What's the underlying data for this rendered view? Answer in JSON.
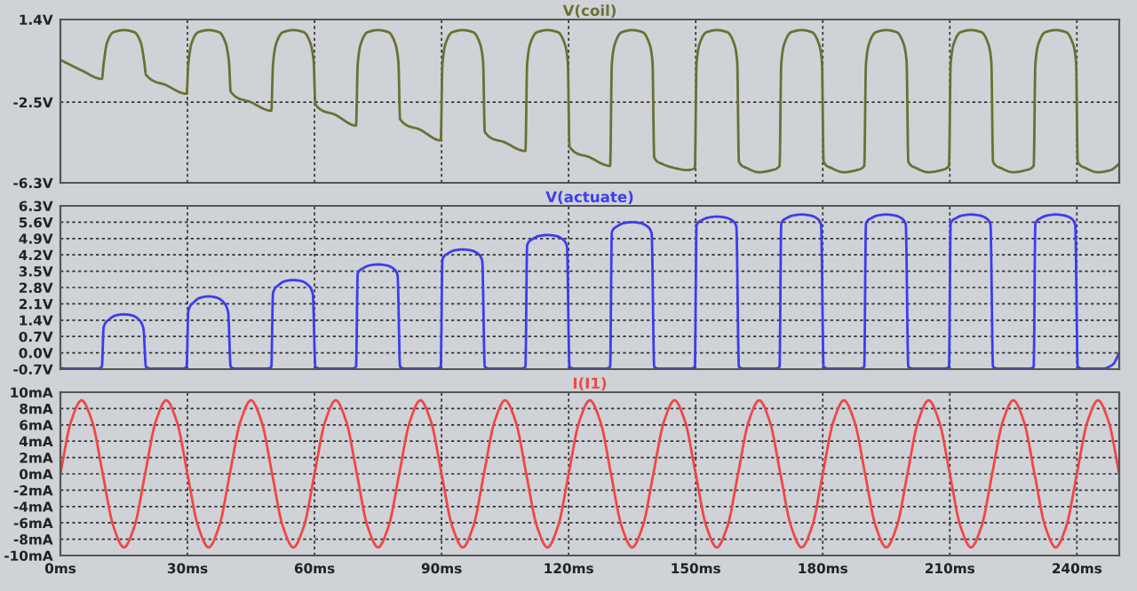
{
  "chart_data": [
    {
      "type": "line",
      "tick_labels": "y",
      "grid": true,
      "xlim": [
        0,
        250
      ],
      "ylim": [
        -6.3,
        1.4
      ],
      "xticks": [
        {
          "value": 0,
          "label": null
        },
        {
          "value": 30,
          "label": null
        },
        {
          "value": 60,
          "label": null
        },
        {
          "value": 90,
          "label": null
        },
        {
          "value": 120,
          "label": null
        },
        {
          "value": 150,
          "label": null
        },
        {
          "value": 180,
          "label": null
        },
        {
          "value": 210,
          "label": null
        },
        {
          "value": 240,
          "label": null
        }
      ],
      "yticks": [
        {
          "value": 1.4,
          "label": "1.4V"
        },
        {
          "value": -2.5,
          "label": "-2.5V"
        },
        {
          "value": -6.3,
          "label": "-6.3V"
        }
      ],
      "series": [
        {
          "name": "V(coil)",
          "color": "#6b7033",
          "x": [
            0,
            5,
            9.8,
            10.2,
            11,
            12.5,
            15,
            17.5,
            19,
            19.8,
            20.2,
            25,
            29.8,
            30.2,
            31,
            32.5,
            35,
            37.5,
            39,
            39.8,
            40.2,
            45,
            49.8,
            50.2,
            51,
            52.5,
            55,
            57.5,
            59,
            59.8,
            60.2,
            65,
            69.8,
            70.2,
            71,
            72.5,
            75,
            77.5,
            79,
            79.8,
            80.2,
            85,
            89.8,
            90.2,
            91,
            92.5,
            95,
            97.5,
            99,
            99.8,
            100.2,
            105,
            109.8,
            110.2,
            111,
            112.5,
            115,
            117.5,
            119,
            119.8,
            120.2,
            125,
            129.8,
            130.2,
            131,
            132.5,
            135,
            137.5,
            139,
            139.8,
            140.2,
            142,
            145,
            148,
            149.8,
            150.2,
            151,
            152.5,
            155,
            157.5,
            159,
            159.8,
            160.2,
            162,
            165,
            168,
            169.8,
            170.2,
            171,
            172.5,
            175,
            177.5,
            179,
            179.8,
            180.2,
            182,
            185,
            188,
            189.8,
            190.2,
            191,
            192.5,
            195,
            197.5,
            199,
            199.8,
            200.2,
            202,
            205,
            208,
            209.8,
            210.2,
            211,
            212.5,
            215,
            217.5,
            219,
            219.8,
            220.2,
            222,
            225,
            228,
            229.8,
            230.2,
            231,
            232.5,
            235,
            237.5,
            239,
            239.8,
            240.2,
            242,
            245,
            248,
            250
          ],
          "values": [
            -0.5,
            -1.0,
            -1.4,
            -0.7,
            0.3,
            0.8,
            0.9,
            0.8,
            0.3,
            -0.6,
            -1.2,
            -1.7,
            -2.1,
            -0.7,
            0.3,
            0.8,
            0.9,
            0.8,
            0.3,
            -0.6,
            -2.0,
            -2.5,
            -2.9,
            -0.7,
            0.3,
            0.8,
            0.9,
            0.8,
            0.3,
            -0.6,
            -2.6,
            -3.1,
            -3.6,
            -0.7,
            0.3,
            0.8,
            0.9,
            0.8,
            0.3,
            -0.6,
            -3.3,
            -3.8,
            -4.3,
            -0.7,
            0.3,
            0.8,
            0.9,
            0.8,
            0.3,
            -0.6,
            -3.9,
            -4.4,
            -4.8,
            -0.7,
            0.3,
            0.8,
            0.9,
            0.8,
            0.3,
            -0.6,
            -4.6,
            -5.1,
            -5.5,
            -0.7,
            0.3,
            0.8,
            0.9,
            0.8,
            0.3,
            -0.6,
            -5.1,
            -5.4,
            -5.6,
            -5.7,
            -5.6,
            -0.7,
            0.3,
            0.8,
            0.9,
            0.8,
            0.3,
            -0.6,
            -5.3,
            -5.6,
            -5.8,
            -5.7,
            -5.5,
            -0.7,
            0.3,
            0.8,
            0.9,
            0.8,
            0.3,
            -0.6,
            -5.3,
            -5.6,
            -5.8,
            -5.7,
            -5.5,
            -0.7,
            0.3,
            0.8,
            0.9,
            0.8,
            0.3,
            -0.6,
            -5.3,
            -5.6,
            -5.8,
            -5.7,
            -5.5,
            -0.7,
            0.3,
            0.8,
            0.9,
            0.8,
            0.3,
            -0.6,
            -5.3,
            -5.6,
            -5.8,
            -5.7,
            -5.5,
            -0.7,
            0.3,
            0.8,
            0.9,
            0.8,
            0.3,
            -0.6,
            -5.3,
            -5.6,
            -5.8,
            -5.7,
            -5.4
          ]
        }
      ]
    },
    {
      "type": "line",
      "tick_labels": "y",
      "grid": true,
      "xlim": [
        0,
        250
      ],
      "ylim": [
        -0.7,
        6.3
      ],
      "xticks": [
        {
          "value": 0,
          "label": null
        },
        {
          "value": 30,
          "label": null
        },
        {
          "value": 60,
          "label": null
        },
        {
          "value": 90,
          "label": null
        },
        {
          "value": 120,
          "label": null
        },
        {
          "value": 150,
          "label": null
        },
        {
          "value": 180,
          "label": null
        },
        {
          "value": 210,
          "label": null
        },
        {
          "value": 240,
          "label": null
        }
      ],
      "yticks": [
        {
          "value": -0.7,
          "label": "-0.7V"
        },
        {
          "value": 0,
          "label": "0.0V"
        },
        {
          "value": 0.7,
          "label": "0.7V"
        },
        {
          "value": 1.4,
          "label": "1.4V"
        },
        {
          "value": 2.1,
          "label": "2.1V"
        },
        {
          "value": 2.8,
          "label": "2.8V"
        },
        {
          "value": 3.5,
          "label": "3.5V"
        },
        {
          "value": 4.2,
          "label": "4.2V"
        },
        {
          "value": 4.9,
          "label": "4.9V"
        },
        {
          "value": 5.6,
          "label": "5.6V"
        },
        {
          "value": 6.3,
          "label": "6.3V"
        }
      ],
      "series": [
        {
          "name": "V(actuate)",
          "color": "#3c3cf0",
          "x": [
            0,
            1.5,
            8.5,
            9.8,
            10.2,
            11.5,
            13,
            15,
            17,
            18.5,
            19.6,
            20.2,
            21.5,
            28.5,
            29.8,
            30.2,
            31.5,
            33,
            35,
            37,
            38.5,
            39.6,
            40.2,
            41.5,
            48.5,
            49.8,
            50.2,
            51.5,
            53,
            55,
            57,
            58.5,
            59.6,
            60.2,
            61.5,
            68.5,
            69.8,
            70.2,
            71.5,
            73,
            75,
            77,
            78.5,
            79.6,
            80.2,
            81.5,
            88.5,
            89.8,
            90.2,
            91.5,
            93,
            95,
            97,
            98.5,
            99.6,
            100.2,
            101.5,
            108.5,
            109.8,
            110.2,
            111.5,
            113,
            115,
            117,
            118.5,
            119.6,
            120.2,
            121.5,
            128.5,
            129.8,
            130.2,
            131.5,
            133,
            135,
            137,
            138.5,
            139.6,
            140.2,
            141.5,
            148.5,
            149.8,
            150.2,
            151.5,
            153,
            155,
            157,
            158.5,
            159.6,
            160.2,
            161.5,
            168.5,
            169.8,
            170.2,
            171.5,
            173,
            175,
            177,
            178.5,
            179.6,
            180.2,
            181.5,
            188.5,
            189.8,
            190.2,
            191.5,
            193,
            195,
            197,
            198.5,
            199.6,
            200.2,
            201.5,
            208.5,
            209.8,
            210.2,
            211.5,
            213,
            215,
            217,
            218.5,
            219.6,
            220.2,
            221.5,
            228.5,
            229.8,
            230.2,
            231.5,
            233,
            235,
            237,
            238.5,
            239.6,
            240.2,
            241.5,
            246,
            248.5,
            250
          ],
          "values": [
            -0.65,
            -0.68,
            -0.68,
            -0.6,
            1.1,
            1.43,
            1.6,
            1.65,
            1.6,
            1.43,
            1.05,
            -0.6,
            -0.68,
            -0.68,
            -0.6,
            1.8,
            2.17,
            2.36,
            2.42,
            2.36,
            2.17,
            1.75,
            -0.6,
            -0.68,
            -0.68,
            -0.6,
            2.57,
            2.9,
            3.07,
            3.12,
            3.07,
            2.9,
            2.52,
            -0.6,
            -0.68,
            -0.68,
            -0.6,
            3.4,
            3.63,
            3.75,
            3.79,
            3.75,
            3.63,
            3.35,
            -0.6,
            -0.68,
            -0.68,
            -0.6,
            4.0,
            4.26,
            4.39,
            4.43,
            4.39,
            4.26,
            3.95,
            -0.6,
            -0.68,
            -0.68,
            -0.6,
            4.62,
            4.88,
            5.01,
            5.05,
            5.01,
            4.88,
            4.57,
            -0.6,
            -0.68,
            -0.68,
            -0.6,
            5.17,
            5.43,
            5.56,
            5.6,
            5.56,
            5.43,
            5.12,
            -0.6,
            -0.68,
            -0.68,
            -0.6,
            5.47,
            5.69,
            5.8,
            5.84,
            5.8,
            5.69,
            5.42,
            -0.6,
            -0.68,
            -0.68,
            -0.6,
            5.55,
            5.78,
            5.89,
            5.93,
            5.89,
            5.78,
            5.5,
            -0.6,
            -0.68,
            -0.68,
            -0.6,
            5.55,
            5.78,
            5.89,
            5.93,
            5.89,
            5.78,
            5.5,
            -0.6,
            -0.68,
            -0.68,
            -0.6,
            5.55,
            5.78,
            5.89,
            5.93,
            5.89,
            5.78,
            5.5,
            -0.6,
            -0.68,
            -0.68,
            -0.6,
            5.55,
            5.78,
            5.89,
            5.93,
            5.89,
            5.78,
            5.5,
            -0.6,
            -0.68,
            -0.68,
            -0.5,
            0.0
          ]
        }
      ]
    },
    {
      "type": "line",
      "grid": true,
      "xlim": [
        0,
        250
      ],
      "ylim": [
        -10,
        10
      ],
      "xticks": [
        {
          "value": 0,
          "label": "0ms"
        },
        {
          "value": 30,
          "label": "30ms"
        },
        {
          "value": 60,
          "label": "60ms"
        },
        {
          "value": 90,
          "label": "90ms"
        },
        {
          "value": 120,
          "label": "120ms"
        },
        {
          "value": 150,
          "label": "150ms"
        },
        {
          "value": 180,
          "label": "180ms"
        },
        {
          "value": 210,
          "label": "210ms"
        },
        {
          "value": 240,
          "label": "240ms"
        }
      ],
      "yticks": [
        {
          "value": -10,
          "label": "-10mA"
        },
        {
          "value": -8,
          "label": "-8mA"
        },
        {
          "value": -6,
          "label": "-6mA"
        },
        {
          "value": -4,
          "label": "-4mA"
        },
        {
          "value": -2,
          "label": "-2mA"
        },
        {
          "value": 0,
          "label": "0mA"
        },
        {
          "value": 2,
          "label": "2mA"
        },
        {
          "value": 4,
          "label": "4mA"
        },
        {
          "value": 6,
          "label": "6mA"
        },
        {
          "value": 8,
          "label": "8mA"
        },
        {
          "value": 10,
          "label": "10mA"
        }
      ],
      "series": [
        {
          "name": "I(I1)",
          "color": "#f04646",
          "x": [
            0,
            2.5,
            5,
            7.5,
            10,
            12.5,
            15,
            17.5,
            20,
            22.5,
            25,
            27.5,
            30,
            32.5,
            35,
            37.5,
            40,
            42.5,
            45,
            47.5,
            50,
            52.5,
            55,
            57.5,
            60,
            62.5,
            65,
            67.5,
            70,
            72.5,
            75,
            77.5,
            80,
            82.5,
            85,
            87.5,
            90,
            92.5,
            95,
            97.5,
            100,
            102.5,
            105,
            107.5,
            110,
            112.5,
            115,
            117.5,
            120,
            122.5,
            125,
            127.5,
            130,
            132.5,
            135,
            137.5,
            140,
            142.5,
            145,
            147.5,
            150,
            152.5,
            155,
            157.5,
            160,
            162.5,
            165,
            167.5,
            170,
            172.5,
            175,
            177.5,
            180,
            182.5,
            185,
            187.5,
            190,
            192.5,
            195,
            197.5,
            200,
            202.5,
            205,
            207.5,
            210,
            212.5,
            215,
            217.5,
            220,
            222.5,
            225,
            227.5,
            230,
            232.5,
            235,
            237.5,
            240,
            242.5,
            245,
            247.5,
            250
          ],
          "values": [
            0,
            6.4,
            9,
            6.4,
            0,
            -6.4,
            -9,
            -6.4,
            0,
            6.4,
            9,
            6.4,
            0,
            -6.4,
            -9,
            -6.4,
            0,
            6.4,
            9,
            6.4,
            0,
            -6.4,
            -9,
            -6.4,
            0,
            6.4,
            9,
            6.4,
            0,
            -6.4,
            -9,
            -6.4,
            0,
            6.4,
            9,
            6.4,
            0,
            -6.4,
            -9,
            -6.4,
            0,
            6.4,
            9,
            6.4,
            0,
            -6.4,
            -9,
            -6.4,
            0,
            6.4,
            9,
            6.4,
            0,
            -6.4,
            -9,
            -6.4,
            0,
            6.4,
            9,
            6.4,
            0,
            -6.4,
            -9,
            -6.4,
            0,
            6.4,
            9,
            6.4,
            0,
            -6.4,
            -9,
            -6.4,
            0,
            6.4,
            9,
            6.4,
            0,
            -6.4,
            -9,
            -6.4,
            0,
            6.4,
            9,
            6.4,
            0,
            -6.4,
            -9,
            -6.4,
            0,
            6.4,
            9,
            6.4,
            0,
            -6.4,
            -9,
            -6.4,
            0,
            6.4,
            9,
            6.4,
            0
          ]
        }
      ]
    }
  ]
}
